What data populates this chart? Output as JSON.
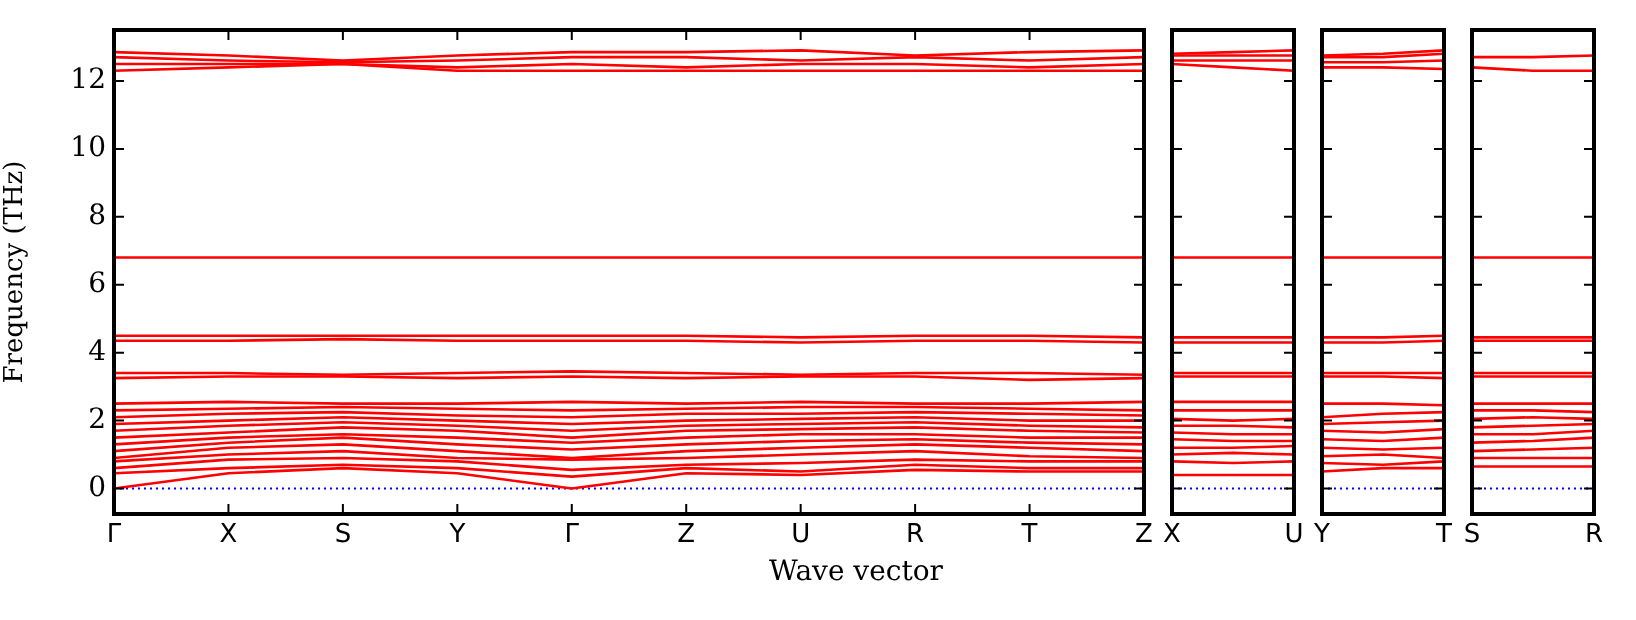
{
  "chart_data": [
    {
      "type": "line",
      "ylabel": "Frequency (THz)",
      "xlabel": "Wave vector",
      "categories": [
        "Γ",
        "X",
        "S",
        "Y",
        "Γ",
        "Z",
        "U",
        "R",
        "T",
        "Z"
      ],
      "ylim": [
        -0.75,
        13.5
      ],
      "yticks": [
        0,
        2,
        4,
        6,
        8,
        10,
        12
      ],
      "ref_lines": [
        {
          "axis": "y",
          "value": 0,
          "color": "#0000ff",
          "line_style": "dotted"
        }
      ],
      "series": [
        {
          "color": "#ff0000",
          "values": [
            0,
            0.45,
            0.6,
            0.45,
            0,
            0.45,
            0.4,
            0.55,
            0.5,
            0.5
          ]
        },
        {
          "color": "#ff0000",
          "values": [
            0.45,
            0.6,
            0.7,
            0.6,
            0.35,
            0.6,
            0.5,
            0.7,
            0.6,
            0.6
          ]
        },
        {
          "color": "#ff0000",
          "values": [
            0.6,
            0.85,
            0.9,
            0.8,
            0.55,
            0.7,
            0.75,
            0.85,
            0.8,
            0.8
          ]
        },
        {
          "color": "#ff0000",
          "values": [
            0.8,
            1.0,
            1.1,
            0.9,
            0.85,
            0.9,
            1.0,
            1.1,
            0.95,
            0.9
          ]
        },
        {
          "color": "#ff0000",
          "values": [
            0.9,
            1.2,
            1.3,
            1.1,
            0.9,
            1.1,
            1.2,
            1.3,
            1.2,
            1.1
          ]
        },
        {
          "color": "#ff0000",
          "values": [
            1.1,
            1.35,
            1.5,
            1.3,
            1.15,
            1.3,
            1.4,
            1.45,
            1.35,
            1.3
          ]
        },
        {
          "color": "#ff0000",
          "values": [
            1.3,
            1.5,
            1.6,
            1.5,
            1.35,
            1.5,
            1.6,
            1.6,
            1.5,
            1.5
          ]
        },
        {
          "color": "#ff0000",
          "values": [
            1.5,
            1.65,
            1.8,
            1.7,
            1.5,
            1.7,
            1.75,
            1.8,
            1.7,
            1.65
          ]
        },
        {
          "color": "#ff0000",
          "values": [
            1.7,
            1.85,
            1.95,
            1.85,
            1.7,
            1.85,
            1.9,
            1.95,
            1.85,
            1.8
          ]
        },
        {
          "color": "#ff0000",
          "values": [
            1.9,
            2.0,
            2.1,
            2.0,
            1.9,
            2.0,
            2.05,
            2.1,
            2.0,
            2.0
          ]
        },
        {
          "color": "#ff0000",
          "values": [
            2.1,
            2.2,
            2.25,
            2.15,
            2.1,
            2.2,
            2.2,
            2.25,
            2.2,
            2.15
          ]
        },
        {
          "color": "#ff0000",
          "values": [
            2.3,
            2.35,
            2.4,
            2.35,
            2.3,
            2.35,
            2.4,
            2.4,
            2.35,
            2.3
          ]
        },
        {
          "color": "#ff0000",
          "values": [
            2.5,
            2.55,
            2.5,
            2.5,
            2.55,
            2.5,
            2.55,
            2.5,
            2.5,
            2.55
          ]
        },
        {
          "color": "#ff0000",
          "values": [
            3.25,
            3.3,
            3.3,
            3.25,
            3.3,
            3.25,
            3.3,
            3.3,
            3.2,
            3.25
          ]
        },
        {
          "color": "#ff0000",
          "values": [
            3.4,
            3.4,
            3.35,
            3.4,
            3.45,
            3.4,
            3.35,
            3.4,
            3.4,
            3.35
          ]
        },
        {
          "color": "#ff0000",
          "values": [
            4.35,
            4.35,
            4.4,
            4.35,
            4.35,
            4.35,
            4.3,
            4.35,
            4.35,
            4.3
          ]
        },
        {
          "color": "#ff0000",
          "values": [
            4.5,
            4.5,
            4.5,
            4.5,
            4.5,
            4.5,
            4.45,
            4.5,
            4.5,
            4.45
          ]
        },
        {
          "color": "#ff0000",
          "values": [
            6.8,
            6.8,
            6.8,
            6.8,
            6.8,
            6.8,
            6.8,
            6.8,
            6.8,
            6.8
          ]
        },
        {
          "color": "#ff0000",
          "values": [
            12.3,
            12.4,
            12.5,
            12.3,
            12.3,
            12.3,
            12.3,
            12.3,
            12.3,
            12.3
          ]
        },
        {
          "color": "#ff0000",
          "values": [
            12.5,
            12.5,
            12.5,
            12.4,
            12.5,
            12.4,
            12.5,
            12.5,
            12.4,
            12.5
          ]
        },
        {
          "color": "#ff0000",
          "values": [
            12.7,
            12.6,
            12.55,
            12.6,
            12.7,
            12.7,
            12.6,
            12.7,
            12.6,
            12.7
          ]
        },
        {
          "color": "#ff0000",
          "values": [
            12.85,
            12.75,
            12.6,
            12.75,
            12.85,
            12.85,
            12.9,
            12.75,
            12.85,
            12.9
          ]
        }
      ]
    },
    {
      "type": "line",
      "categories": [
        "X",
        null,
        "U"
      ],
      "ylim": [
        -0.75,
        13.5
      ],
      "yticks": [
        0,
        2,
        4,
        6,
        8,
        10,
        12
      ],
      "tick_labels": "x",
      "ref_lines": [
        {
          "axis": "y",
          "value": 0,
          "color": "#0000ff",
          "line_style": "dotted"
        }
      ],
      "series": [
        {
          "color": "#ff0000",
          "values": [
            0.4,
            0.4,
            0.4
          ]
        },
        {
          "color": "#ff0000",
          "values": [
            0.8,
            0.75,
            0.8
          ]
        },
        {
          "color": "#ff0000",
          "values": [
            1.0,
            1.05,
            1.0
          ]
        },
        {
          "color": "#ff0000",
          "values": [
            1.2,
            1.2,
            1.25
          ]
        },
        {
          "color": "#ff0000",
          "values": [
            1.45,
            1.4,
            1.4
          ]
        },
        {
          "color": "#ff0000",
          "values": [
            1.65,
            1.6,
            1.6
          ]
        },
        {
          "color": "#ff0000",
          "values": [
            1.85,
            1.85,
            1.8
          ]
        },
        {
          "color": "#ff0000",
          "values": [
            2.05,
            2.0,
            2.05
          ]
        },
        {
          "color": "#ff0000",
          "values": [
            2.3,
            2.3,
            2.3
          ]
        },
        {
          "color": "#ff0000",
          "values": [
            2.55,
            2.55,
            2.55
          ]
        },
        {
          "color": "#ff0000",
          "values": [
            3.3,
            3.3,
            3.3
          ]
        },
        {
          "color": "#ff0000",
          "values": [
            3.4,
            3.4,
            3.4
          ]
        },
        {
          "color": "#ff0000",
          "values": [
            4.3,
            4.3,
            4.3
          ]
        },
        {
          "color": "#ff0000",
          "values": [
            4.45,
            4.45,
            4.45
          ]
        },
        {
          "color": "#ff0000",
          "values": [
            6.8,
            6.8,
            6.8
          ]
        },
        {
          "color": "#ff0000",
          "values": [
            12.5,
            12.4,
            12.3
          ]
        },
        {
          "color": "#ff0000",
          "values": [
            12.6,
            12.6,
            12.6
          ]
        },
        {
          "color": "#ff0000",
          "values": [
            12.75,
            12.75,
            12.75
          ]
        },
        {
          "color": "#ff0000",
          "values": [
            12.8,
            12.85,
            12.9
          ]
        }
      ]
    },
    {
      "type": "line",
      "categories": [
        "Y",
        null,
        "T"
      ],
      "ylim": [
        -0.75,
        13.5
      ],
      "yticks": [
        0,
        2,
        4,
        6,
        8,
        10,
        12
      ],
      "tick_labels": "x",
      "ref_lines": [
        {
          "axis": "y",
          "value": 0,
          "color": "#0000ff",
          "line_style": "dotted"
        }
      ],
      "series": [
        {
          "color": "#ff0000",
          "values": [
            0.5,
            0.6,
            0.6
          ]
        },
        {
          "color": "#ff0000",
          "values": [
            0.75,
            0.7,
            0.8
          ]
        },
        {
          "color": "#ff0000",
          "values": [
            0.95,
            1.0,
            0.9
          ]
        },
        {
          "color": "#ff0000",
          "values": [
            1.2,
            1.15,
            1.2
          ]
        },
        {
          "color": "#ff0000",
          "values": [
            1.45,
            1.4,
            1.5
          ]
        },
        {
          "color": "#ff0000",
          "values": [
            1.7,
            1.65,
            1.75
          ]
        },
        {
          "color": "#ff0000",
          "values": [
            1.9,
            1.95,
            2.0
          ]
        },
        {
          "color": "#ff0000",
          "values": [
            2.1,
            2.2,
            2.25
          ]
        },
        {
          "color": "#ff0000",
          "values": [
            2.5,
            2.5,
            2.45
          ]
        },
        {
          "color": "#ff0000",
          "values": [
            3.3,
            3.3,
            3.25
          ]
        },
        {
          "color": "#ff0000",
          "values": [
            3.4,
            3.4,
            3.4
          ]
        },
        {
          "color": "#ff0000",
          "values": [
            4.3,
            4.3,
            4.35
          ]
        },
        {
          "color": "#ff0000",
          "values": [
            4.45,
            4.45,
            4.5
          ]
        },
        {
          "color": "#ff0000",
          "values": [
            6.8,
            6.8,
            6.8
          ]
        },
        {
          "color": "#ff0000",
          "values": [
            12.4,
            12.4,
            12.35
          ]
        },
        {
          "color": "#ff0000",
          "values": [
            12.55,
            12.55,
            12.6
          ]
        },
        {
          "color": "#ff0000",
          "values": [
            12.7,
            12.7,
            12.8
          ]
        },
        {
          "color": "#ff0000",
          "values": [
            12.75,
            12.8,
            12.9
          ]
        }
      ]
    },
    {
      "type": "line",
      "categories": [
        "S",
        null,
        "R"
      ],
      "ylim": [
        -0.75,
        13.5
      ],
      "yticks": [
        0,
        2,
        4,
        6,
        8,
        10,
        12
      ],
      "tick_labels": "x",
      "ref_lines": [
        {
          "axis": "y",
          "value": 0,
          "color": "#0000ff",
          "line_style": "dotted"
        }
      ],
      "series": [
        {
          "color": "#ff0000",
          "values": [
            0.65,
            0.65,
            0.65
          ]
        },
        {
          "color": "#ff0000",
          "values": [
            0.9,
            0.9,
            0.9
          ]
        },
        {
          "color": "#ff0000",
          "values": [
            1.1,
            1.15,
            1.2
          ]
        },
        {
          "color": "#ff0000",
          "values": [
            1.35,
            1.4,
            1.5
          ]
        },
        {
          "color": "#ff0000",
          "values": [
            1.6,
            1.6,
            1.7
          ]
        },
        {
          "color": "#ff0000",
          "values": [
            1.8,
            1.85,
            1.9
          ]
        },
        {
          "color": "#ff0000",
          "values": [
            2.05,
            2.1,
            2.05
          ]
        },
        {
          "color": "#ff0000",
          "values": [
            2.3,
            2.3,
            2.25
          ]
        },
        {
          "color": "#ff0000",
          "values": [
            2.5,
            2.5,
            2.5
          ]
        },
        {
          "color": "#ff0000",
          "values": [
            3.3,
            3.3,
            3.3
          ]
        },
        {
          "color": "#ff0000",
          "values": [
            3.4,
            3.4,
            3.4
          ]
        },
        {
          "color": "#ff0000",
          "values": [
            4.35,
            4.35,
            4.35
          ]
        },
        {
          "color": "#ff0000",
          "values": [
            4.45,
            4.45,
            4.45
          ]
        },
        {
          "color": "#ff0000",
          "values": [
            6.8,
            6.8,
            6.8
          ]
        },
        {
          "color": "#ff0000",
          "values": [
            12.4,
            12.3,
            12.3
          ]
        },
        {
          "color": "#ff0000",
          "values": [
            12.7,
            12.7,
            12.75
          ]
        }
      ]
    }
  ]
}
